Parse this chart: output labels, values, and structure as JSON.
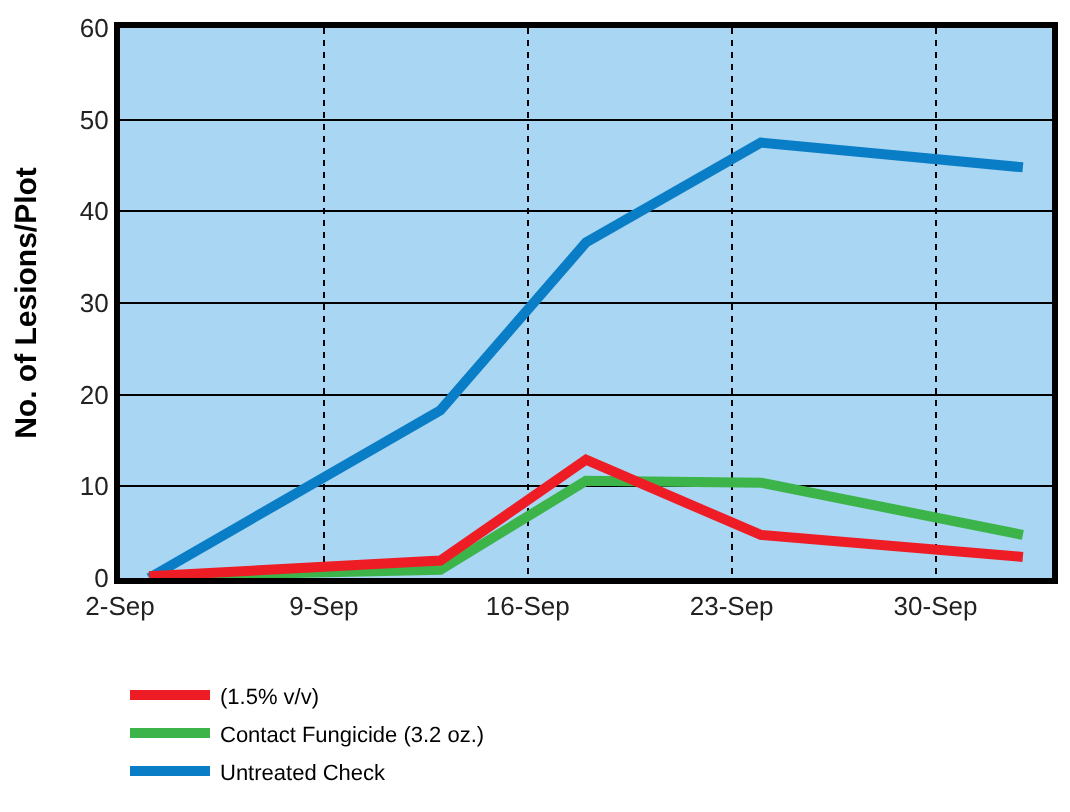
{
  "chart_data": {
    "type": "line",
    "ylabel": "No. of Lesions/Plot",
    "x": [
      "--09-03",
      "--09-13",
      "--09-18",
      "--09-24",
      "--10-03"
    ],
    "series": [
      {
        "name": "(1.5% v/v)",
        "color": "#ee1c25",
        "values": [
          0.2,
          1.9,
          12.9,
          4.7,
          2.3
        ]
      },
      {
        "name": "Contact Fungicide (3.2 oz.)",
        "color": "#3cb44a",
        "values": [
          0.2,
          0.9,
          10.6,
          10.4,
          4.7
        ]
      },
      {
        "name": "Untreated Check",
        "color": "#0a7dc7",
        "values": [
          0,
          18.3,
          36.6,
          47.5,
          44.8
        ]
      }
    ],
    "xlim": [
      "--09-02",
      "--10-04"
    ],
    "xticks": [
      {
        "value": "--09-02",
        "label": "2-Sep"
      },
      {
        "value": "--09-09",
        "label": "9-Sep"
      },
      {
        "value": "--09-16",
        "label": "16-Sep"
      },
      {
        "value": "--09-23",
        "label": "23-Sep"
      },
      {
        "value": "--09-30",
        "label": "30-Sep"
      }
    ],
    "ylim": [
      0,
      60
    ],
    "yticks": [
      0,
      10,
      20,
      30,
      40,
      50,
      60
    ],
    "grid": true,
    "legend": "bottom",
    "marker": "none",
    "line_style": "solid"
  }
}
